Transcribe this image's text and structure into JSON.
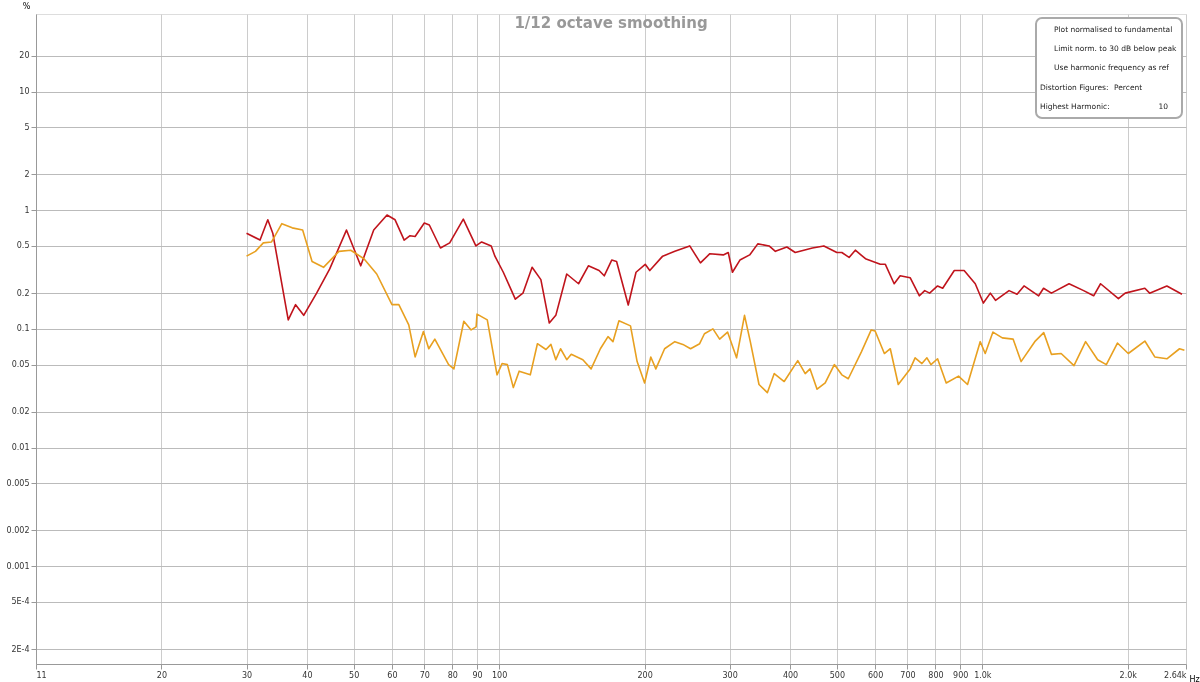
{
  "chart_data": {
    "type": "line",
    "title": "1/12 octave smoothing",
    "xlabel": "Hz",
    "ylabel": "%",
    "log": "xy",
    "grid": true,
    "marker": "none",
    "line_style": "solid",
    "xlim": [
      11,
      2640
    ],
    "ylim": [
      0.00015,
      45
    ],
    "xticks": [
      11,
      20,
      30,
      40,
      50,
      60,
      70,
      80,
      90,
      100,
      200,
      300,
      400,
      500,
      600,
      700,
      800,
      900,
      {
        "value": 1000,
        "label": "1.0k"
      },
      {
        "value": 2000,
        "label": "2.0k"
      },
      {
        "value": 2640,
        "label": "2.64k"
      }
    ],
    "yticks": [
      20,
      10,
      5,
      2,
      1,
      0.5,
      0.2,
      0.1,
      0.05,
      0.02,
      0.01,
      0.005,
      0.002,
      0.001,
      {
        "value": 0.0005,
        "label": "5E-4"
      },
      {
        "value": 0.0002,
        "label": "2E-4"
      }
    ],
    "annotations": [
      "Plot normalised to fundamental",
      "Limit norm. to 30 dB below peak",
      "Use harmonic frequency as ref",
      "Distortion Figures:",
      "Percent",
      "Highest Harmonic:",
      "10"
    ],
    "series": [
      {
        "color": "#c0141c",
        "x": [
          30,
          32,
          33.2,
          34,
          36.6,
          37.9,
          39.4,
          41.9,
          44.6,
          48.3,
          51.7,
          55,
          58.6,
          60.9,
          63.6,
          65.4,
          67,
          70,
          71.7,
          75.6,
          79,
          84.3,
          89.5,
          92,
          96.3,
          98,
          102,
          108,
          112,
          117,
          122,
          127,
          131,
          138,
          146,
          153,
          161,
          165,
          171,
          175,
          185,
          192,
          200.6,
          205,
          218,
          231,
          248,
          261,
          273,
          291,
          298,
          304,
          315,
          330,
          343,
          362,
          373,
          394,
          410,
          445,
          470,
          500,
          512,
          530,
          546,
          573,
          615,
          630,
          657,
          676,
          709,
          741,
          760,
          778,
          808,
          828,
          875,
          917,
          967,
          1005,
          1039,
          1065,
          1136,
          1180,
          1220,
          1308,
          1339,
          1390,
          1512,
          1621,
          1700,
          1757,
          1913,
          1976,
          2170,
          2220,
          2410,
          2590
        ],
        "values": [
          0.64,
          0.56,
          0.83,
          0.64,
          0.119,
          0.16,
          0.13,
          0.2,
          0.32,
          0.68,
          0.34,
          0.68,
          0.91,
          0.83,
          0.56,
          0.61,
          0.6,
          0.78,
          0.75,
          0.48,
          0.53,
          0.84,
          0.5,
          0.54,
          0.5,
          0.41,
          0.3,
          0.178,
          0.2,
          0.33,
          0.26,
          0.112,
          0.13,
          0.29,
          0.24,
          0.34,
          0.31,
          0.28,
          0.38,
          0.37,
          0.159,
          0.3,
          0.35,
          0.31,
          0.41,
          0.45,
          0.5,
          0.36,
          0.43,
          0.42,
          0.44,
          0.3,
          0.38,
          0.42,
          0.52,
          0.5,
          0.45,
          0.49,
          0.44,
          0.48,
          0.5,
          0.44,
          0.44,
          0.4,
          0.46,
          0.39,
          0.35,
          0.35,
          0.24,
          0.28,
          0.27,
          0.19,
          0.21,
          0.2,
          0.23,
          0.22,
          0.31,
          0.31,
          0.24,
          0.165,
          0.2,
          0.174,
          0.21,
          0.196,
          0.23,
          0.19,
          0.22,
          0.2,
          0.24,
          0.21,
          0.19,
          0.24,
          0.18,
          0.2,
          0.22,
          0.2,
          0.23,
          0.196
        ]
      },
      {
        "color": "#e8a020",
        "x": [
          30,
          31.3,
          32.5,
          33.8,
          35.5,
          37.3,
          39.2,
          41,
          43.3,
          46.6,
          49.3,
          52.5,
          55.8,
          60,
          62,
          65,
          67,
          69.7,
          71.5,
          73.6,
          78.6,
          80.6,
          84.5,
          87.5,
          89.6,
          90,
          94.5,
          99,
          101.4,
          104,
          107,
          110,
          116,
          120,
          125,
          128,
          131,
          134,
          138,
          141,
          149,
          155,
          162,
          168,
          172,
          177,
          187,
          193,
          200,
          206,
          211,
          220,
          231,
          240,
          249,
          260,
          266,
          277,
          286,
          297,
          310,
          322,
          331,
          345,
          359,
          371,
          389,
          415,
          430,
          440,
          455,
          473,
          494,
          512,
          528,
          562,
          589,
          600,
          627,
          645,
          670,
          709,
          726,
          750,
          768,
          783,
          808,
          842,
          893,
          932,
          990,
          1014,
          1052,
          1100,
          1158,
          1203,
          1284,
          1340,
          1390,
          1456,
          1548,
          1636,
          1733,
          1806,
          1904,
          2005,
          2170,
          2275,
          2410,
          2560,
          2620
        ],
        "values": [
          0.41,
          0.45,
          0.53,
          0.54,
          0.77,
          0.71,
          0.68,
          0.37,
          0.33,
          0.45,
          0.46,
          0.39,
          0.29,
          0.16,
          0.16,
          0.108,
          0.058,
          0.095,
          0.068,
          0.082,
          0.05,
          0.046,
          0.116,
          0.098,
          0.104,
          0.133,
          0.119,
          0.041,
          0.051,
          0.05,
          0.032,
          0.044,
          0.041,
          0.075,
          0.067,
          0.074,
          0.055,
          0.068,
          0.055,
          0.061,
          0.055,
          0.046,
          0.068,
          0.086,
          0.078,
          0.117,
          0.106,
          0.053,
          0.035,
          0.058,
          0.046,
          0.068,
          0.078,
          0.074,
          0.068,
          0.075,
          0.091,
          0.1,
          0.082,
          0.094,
          0.057,
          0.13,
          0.078,
          0.034,
          0.029,
          0.042,
          0.036,
          0.054,
          0.042,
          0.046,
          0.031,
          0.035,
          0.05,
          0.041,
          0.038,
          0.064,
          0.098,
          0.096,
          0.062,
          0.068,
          0.034,
          0.046,
          0.057,
          0.051,
          0.057,
          0.05,
          0.056,
          0.035,
          0.04,
          0.034,
          0.078,
          0.062,
          0.094,
          0.084,
          0.082,
          0.053,
          0.078,
          0.093,
          0.061,
          0.062,
          0.049,
          0.078,
          0.055,
          0.05,
          0.076,
          0.062,
          0.079,
          0.058,
          0.056,
          0.068,
          0.066
        ]
      }
    ]
  }
}
